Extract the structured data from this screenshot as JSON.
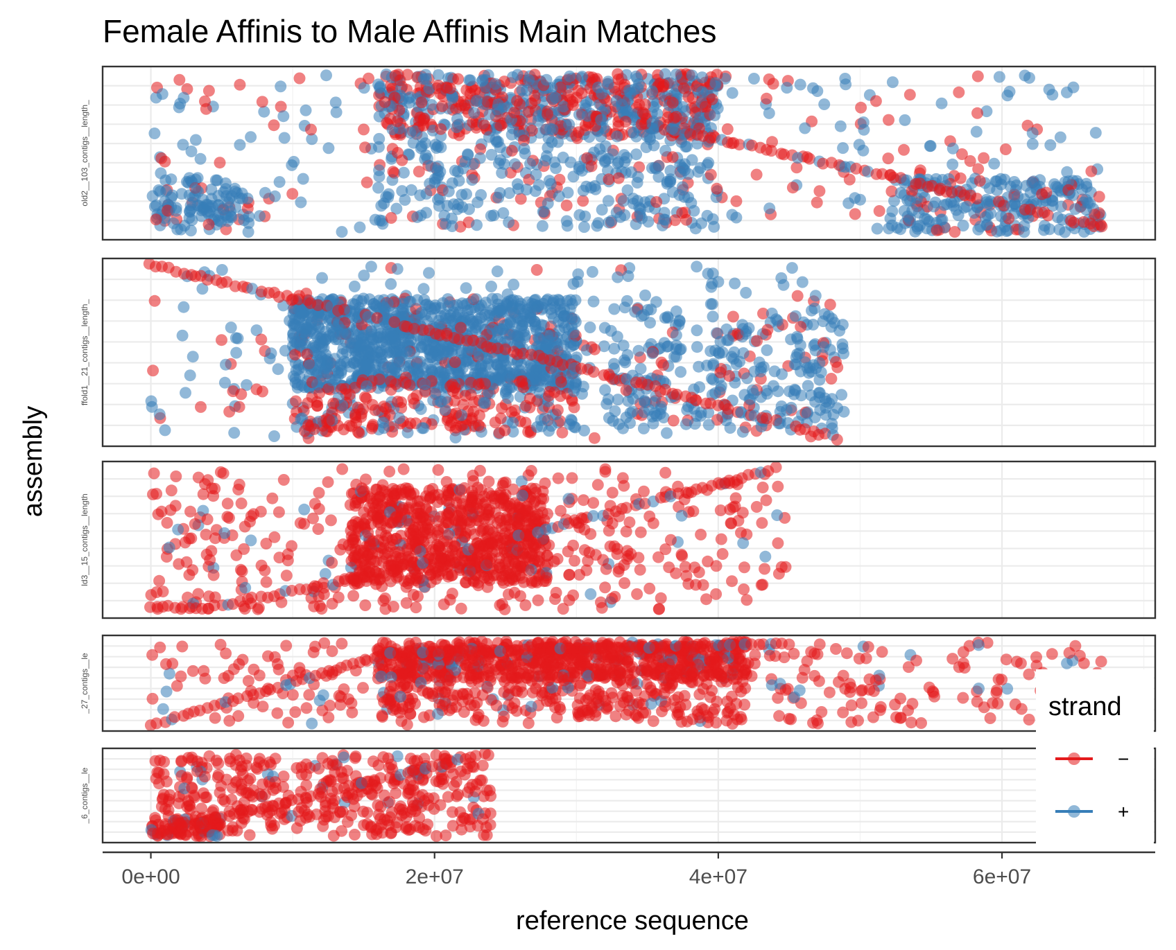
{
  "chart_data": {
    "type": "scatter",
    "title": "Female Affinis to Male Affinis Main Matches",
    "xlabel": "reference sequence",
    "ylabel": "assembly",
    "x_ticks": [
      {
        "value": 0,
        "label": "0e+00"
      },
      {
        "value": 20000000,
        "label": "2e+07"
      },
      {
        "value": 40000000,
        "label": "4e+07"
      },
      {
        "value": 60000000,
        "label": "6e+07"
      }
    ],
    "xlim": [
      -3400000,
      70800000
    ],
    "grid": true,
    "legend": {
      "title": "strand",
      "position": "right",
      "entries": [
        {
          "label": "−",
          "color": "#e41a1c"
        },
        {
          "label": "+",
          "color": "#377eb8"
        }
      ]
    },
    "colors": {
      "minus": "#e41a1c",
      "plus": "#377eb8"
    },
    "facets": [
      {
        "label": "old2__103_contigs__length_",
        "y_range": [
          0,
          1
        ],
        "x_extent": [
          0,
          67500000
        ],
        "trend": [
          [
            38000000,
            0.62
          ],
          [
            52000000,
            0.36
          ],
          [
            67000000,
            0.05
          ]
        ],
        "trend_strand": "minus",
        "clusters": [
          {
            "x": [
              0,
              67000000
            ],
            "y": [
              0.02,
              0.98
            ],
            "n": 300,
            "plus": 0.55
          },
          {
            "x": [
              16000000,
              40000000
            ],
            "y": [
              0.6,
              0.98
            ],
            "n": 650,
            "plus": 0.55
          },
          {
            "x": [
              0,
              7000000
            ],
            "y": [
              0.02,
              0.35
            ],
            "n": 110,
            "plus": 0.85
          },
          {
            "x": [
              52000000,
              67000000
            ],
            "y": [
              0.02,
              0.35
            ],
            "n": 220,
            "plus": 0.85
          },
          {
            "x": [
              16000000,
              40000000
            ],
            "y": [
              0.05,
              0.6
            ],
            "n": 260,
            "plus": 0.85
          }
        ]
      },
      {
        "label": "ffold1__21_contigs__length_",
        "y_range": [
          0,
          1
        ],
        "x_extent": [
          0,
          49000000
        ],
        "trend": [
          [
            0,
            0.99
          ],
          [
            10000000,
            0.8
          ],
          [
            30000000,
            0.42
          ],
          [
            48500000,
            0.02
          ]
        ],
        "trend_strand": "minus",
        "clusters": [
          {
            "x": [
              0,
              49000000
            ],
            "y": [
              0.02,
              0.98
            ],
            "n": 280,
            "plus": 0.75
          },
          {
            "x": [
              10000000,
              30000000
            ],
            "y": [
              0.3,
              0.8
            ],
            "n": 1100,
            "plus": 0.93
          },
          {
            "x": [
              10000000,
              30000000
            ],
            "y": [
              0.05,
              0.35
            ],
            "n": 240,
            "plus": 0.35
          },
          {
            "x": [
              32000000,
              49000000
            ],
            "y": [
              0.05,
              0.75
            ],
            "n": 260,
            "plus": 0.85
          }
        ]
      },
      {
        "label": "ld3__15_contigs__length",
        "y_range": [
          0,
          1
        ],
        "x_extent": [
          0,
          44800000
        ],
        "trend": [
          [
            0,
            0.05
          ],
          [
            4000000,
            0.04
          ],
          [
            15000000,
            0.25
          ],
          [
            25000000,
            0.5
          ],
          [
            44000000,
            0.98
          ]
        ],
        "trend_strand": "minus",
        "clusters": [
          {
            "x": [
              0,
              44800000
            ],
            "y": [
              0.03,
              0.98
            ],
            "n": 420,
            "plus": 0.06
          },
          {
            "x": [
              14000000,
              28000000
            ],
            "y": [
              0.2,
              0.85
            ],
            "n": 650,
            "plus": 0.04
          }
        ]
      },
      {
        "label": "_27_contigs__le",
        "y_range": [
          0,
          1
        ],
        "x_extent": [
          0,
          67500000
        ],
        "trend": [
          [
            0,
            0.02
          ],
          [
            17000000,
            0.85
          ],
          [
            45000000,
            0.95
          ]
        ],
        "trend_strand": "minus",
        "clusters": [
          {
            "x": [
              0,
              67500000
            ],
            "y": [
              0.02,
              0.98
            ],
            "n": 380,
            "plus": 0.12
          },
          {
            "x": [
              16000000,
              42000000
            ],
            "y": [
              0.55,
              0.98
            ],
            "n": 650,
            "plus": 0.08
          },
          {
            "x": [
              16000000,
              42000000
            ],
            "y": [
              0.05,
              0.6
            ],
            "n": 220,
            "plus": 0.06
          }
        ]
      },
      {
        "label": "_6_contigs__le",
        "y_range": [
          0,
          1
        ],
        "x_extent": [
          0,
          24000000
        ],
        "trend": [
          [
            0,
            0.05
          ],
          [
            23500000,
            0.98
          ]
        ],
        "trend_strand": "minus",
        "clusters": [
          {
            "x": [
              0,
              24000000
            ],
            "y": [
              0.02,
              0.98
            ],
            "n": 420,
            "plus": 0.05
          },
          {
            "x": [
              0,
              5000000
            ],
            "y": [
              0.02,
              0.25
            ],
            "n": 80,
            "plus": 0.15
          }
        ]
      }
    ]
  }
}
